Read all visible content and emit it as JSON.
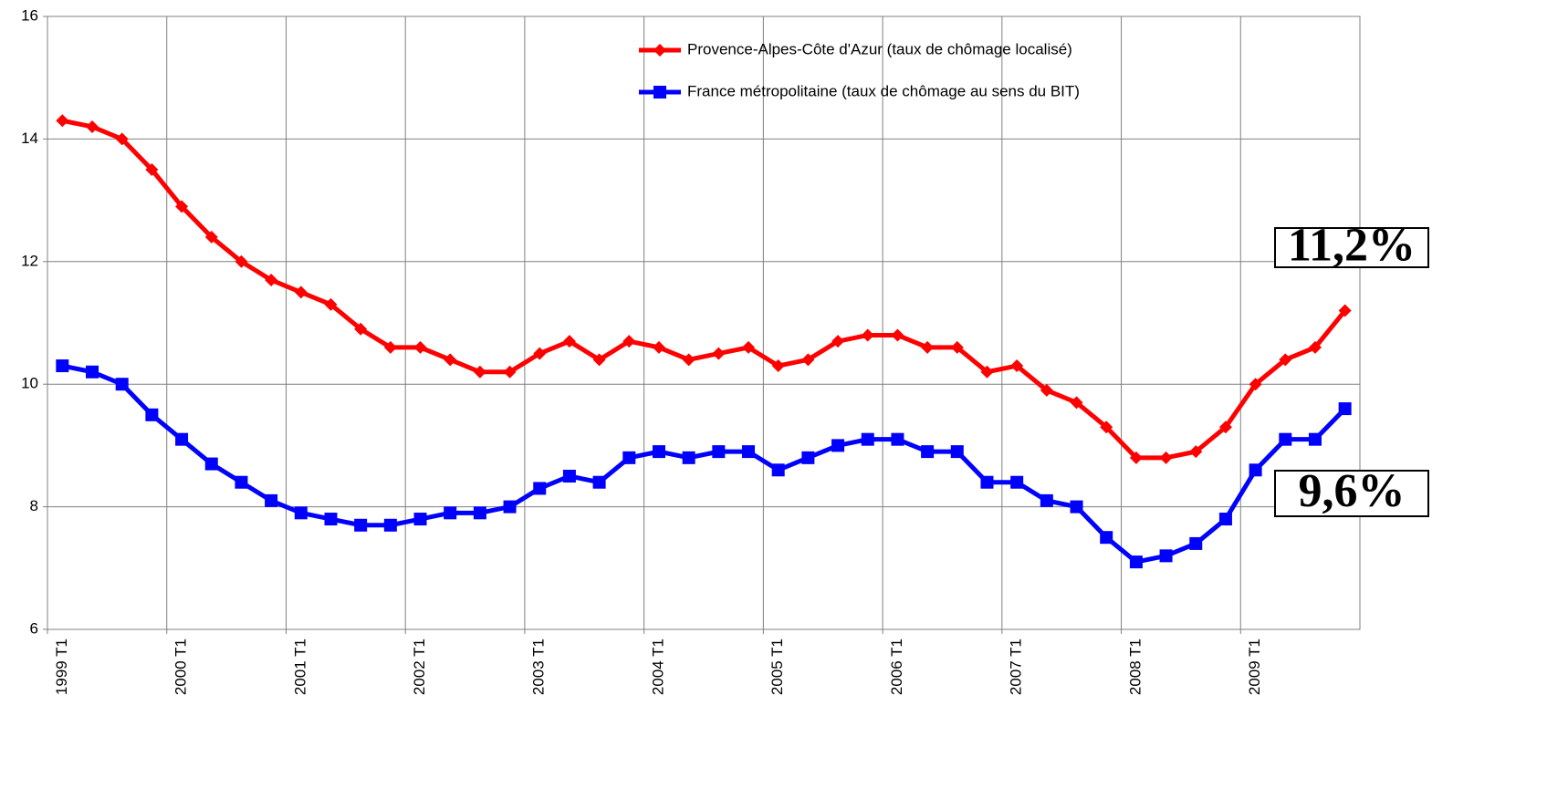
{
  "chart_data": {
    "type": "line",
    "categories": [
      "1999 T1",
      null,
      null,
      null,
      "2000 T1",
      null,
      null,
      null,
      "2001 T1",
      null,
      null,
      null,
      "2002 T1",
      null,
      null,
      null,
      "2003 T1",
      null,
      null,
      null,
      "2004 T1",
      null,
      null,
      null,
      "2005 T1",
      null,
      null,
      null,
      "2006 T1",
      null,
      null,
      null,
      "2007 T1",
      null,
      null,
      null,
      "2008 T1",
      null,
      null,
      null,
      "2009 T1",
      null,
      null,
      null
    ],
    "series": [
      {
        "name": "Provence-Alpes-Côte d'Azur (taux de chômage localisé)",
        "color": "#ff0000",
        "marker": "diamond",
        "values": [
          14.3,
          14.2,
          14.0,
          13.5,
          12.9,
          12.4,
          12.0,
          11.7,
          11.5,
          11.3,
          10.9,
          10.6,
          10.6,
          10.4,
          10.2,
          10.2,
          10.5,
          10.7,
          10.4,
          10.7,
          10.6,
          10.4,
          10.5,
          10.6,
          10.3,
          10.4,
          10.7,
          10.8,
          10.8,
          10.6,
          10.6,
          10.2,
          10.3,
          9.9,
          9.7,
          9.3,
          8.8,
          8.8,
          8.9,
          9.3,
          10.0,
          10.4,
          10.6,
          11.2
        ]
      },
      {
        "name": "France métropolitaine (taux de chômage au sens du BIT)",
        "color": "#0000ff",
        "marker": "square",
        "values": [
          10.3,
          10.2,
          10.0,
          9.5,
          9.1,
          8.7,
          8.4,
          8.1,
          7.9,
          7.8,
          7.7,
          7.7,
          7.8,
          7.9,
          7.9,
          8.0,
          8.3,
          8.5,
          8.4,
          8.8,
          8.9,
          8.8,
          8.9,
          8.9,
          8.6,
          8.8,
          9.0,
          9.1,
          9.1,
          8.9,
          8.9,
          8.4,
          8.4,
          8.1,
          8.0,
          7.5,
          7.1,
          7.2,
          7.4,
          7.8,
          8.6,
          9.1,
          9.1,
          9.6
        ]
      }
    ],
    "ylim": [
      6,
      16
    ],
    "yticks": [
      6,
      8,
      10,
      12,
      14,
      16
    ],
    "grid": true,
    "legend": "top-right",
    "annotations": [
      {
        "text": "11,2%",
        "color": "#ff0000"
      },
      {
        "text": "9,6%",
        "color": "#0000ff"
      }
    ]
  }
}
